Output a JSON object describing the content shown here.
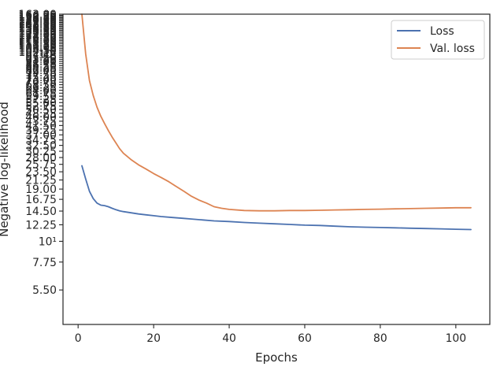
{
  "chart_data": {
    "type": "line",
    "xlabel": "Epochs",
    "ylabel": "Negative log-likelihood",
    "xlim": [
      -4,
      109
    ],
    "ylim": [
      3.6,
      163
    ],
    "yscale": "log",
    "x_ticks": [
      0,
      20,
      40,
      60,
      80,
      100
    ],
    "y_ticks": [
      {
        "value": 5.5,
        "label": "5.50"
      },
      {
        "value": 7.75,
        "label": "7.75"
      },
      {
        "value": 10,
        "label": "10¹"
      },
      {
        "value": 12.25,
        "label": "12.25"
      },
      {
        "value": 14.5,
        "label": "14.50"
      },
      {
        "value": 16.75,
        "label": "16.75"
      },
      {
        "value": 19,
        "label": "19.00"
      },
      {
        "value": 21.25,
        "label": "21.25"
      },
      {
        "value": 23.5,
        "label": "23.50"
      },
      {
        "value": 25.75,
        "label": "25.75"
      },
      {
        "value": 28,
        "label": "28.00"
      },
      {
        "value": 30.25,
        "label": "30.25"
      },
      {
        "value": 32.5,
        "label": "32.50"
      },
      {
        "value": 34.75,
        "label": "34.75"
      },
      {
        "value": 37,
        "label": "37.00"
      },
      {
        "value": 39.25,
        "label": "39.25"
      },
      {
        "value": 41.5,
        "label": "41.50"
      },
      {
        "value": 43.75,
        "label": "43.75"
      },
      {
        "value": 46,
        "label": "46.00"
      },
      {
        "value": 48.25,
        "label": "48.25"
      },
      {
        "value": 50.5,
        "label": "50.50"
      },
      {
        "value": 52.75,
        "label": "52.75"
      },
      {
        "value": 55,
        "label": "55.00"
      },
      {
        "value": 57.25,
        "label": "57.25"
      },
      {
        "value": 59.5,
        "label": "59.50"
      },
      {
        "value": 61.75,
        "label": "61.75"
      },
      {
        "value": 64,
        "label": "64.00"
      },
      {
        "value": 66.25,
        "label": "66.25"
      },
      {
        "value": 68.5,
        "label": "68.50"
      },
      {
        "value": 70.75,
        "label": "70.75"
      },
      {
        "value": 73,
        "label": "73.00"
      },
      {
        "value": 75.25,
        "label": "75.25"
      },
      {
        "value": 77.5,
        "label": "77.50"
      },
      {
        "value": 79.75,
        "label": "79.75"
      },
      {
        "value": 82,
        "label": "82.00"
      },
      {
        "value": 84.25,
        "label": "84.25"
      },
      {
        "value": 86.5,
        "label": "86.50"
      },
      {
        "value": 88.75,
        "label": "88.75"
      },
      {
        "value": 91,
        "label": "91.00"
      },
      {
        "value": 93.25,
        "label": "93.25"
      },
      {
        "value": 95.5,
        "label": "95.50"
      },
      {
        "value": 97.75,
        "label": "97.75"
      },
      {
        "value": 100,
        "label": "10²"
      },
      {
        "value": 102.25,
        "label": "102.25"
      },
      {
        "value": 104.5,
        "label": "104.50"
      },
      {
        "value": 106.75,
        "label": "106.75"
      },
      {
        "value": 109,
        "label": "109.00"
      },
      {
        "value": 111.25,
        "label": "111.25"
      },
      {
        "value": 113.5,
        "label": "113.50"
      },
      {
        "value": 115.75,
        "label": "115.75"
      },
      {
        "value": 118,
        "label": "118.00"
      },
      {
        "value": 120.25,
        "label": "120.25"
      },
      {
        "value": 122.5,
        "label": "122.50"
      },
      {
        "value": 124.75,
        "label": "124.75"
      },
      {
        "value": 127,
        "label": "127.00"
      },
      {
        "value": 129.25,
        "label": "129.25"
      },
      {
        "value": 131.5,
        "label": "131.50"
      },
      {
        "value": 133.75,
        "label": "133.75"
      },
      {
        "value": 136,
        "label": "136.00"
      },
      {
        "value": 138.25,
        "label": "138.25"
      },
      {
        "value": 140.5,
        "label": "140.50"
      },
      {
        "value": 142.75,
        "label": "142.75"
      },
      {
        "value": 145,
        "label": "145.00"
      },
      {
        "value": 147.25,
        "label": "147.25"
      },
      {
        "value": 149.5,
        "label": "149.50"
      },
      {
        "value": 151.75,
        "label": "151.75"
      },
      {
        "value": 154,
        "label": "154.00"
      },
      {
        "value": 156.25,
        "label": "156.25"
      },
      {
        "value": 158.5,
        "label": "158.50"
      },
      {
        "value": 160.75,
        "label": "160.75"
      },
      {
        "value": 163,
        "label": "163.00"
      }
    ],
    "grid": false,
    "legend_position": "top-right",
    "series": [
      {
        "name": "Loss",
        "color": "#4c72b0",
        "x": [
          1,
          2,
          3,
          4,
          5,
          6,
          7,
          8,
          9,
          10,
          11,
          12,
          14,
          16,
          18,
          20,
          22,
          25,
          28,
          30,
          33,
          36,
          40,
          44,
          48,
          52,
          56,
          60,
          64,
          68,
          72,
          76,
          80,
          84,
          88,
          92,
          96,
          100,
          104
        ],
        "y": [
          25.3,
          21.5,
          18.5,
          16.9,
          16.0,
          15.6,
          15.5,
          15.3,
          15.0,
          14.75,
          14.55,
          14.4,
          14.2,
          14.0,
          13.85,
          13.7,
          13.55,
          13.4,
          13.25,
          13.15,
          13.0,
          12.85,
          12.75,
          12.6,
          12.5,
          12.4,
          12.3,
          12.2,
          12.15,
          12.05,
          11.95,
          11.9,
          11.85,
          11.8,
          11.75,
          11.7,
          11.65,
          11.6,
          11.55
        ]
      },
      {
        "name": "Val. loss",
        "color": "#dd8452",
        "x": [
          1,
          2,
          3,
          4,
          5,
          6,
          7,
          8,
          9,
          10,
          11,
          12,
          14,
          16,
          18,
          20,
          22,
          24,
          26,
          28,
          30,
          32,
          34,
          36,
          38,
          40,
          44,
          48,
          52,
          56,
          60,
          64,
          68,
          72,
          76,
          80,
          84,
          88,
          92,
          96,
          100,
          104
        ],
        "y": [
          163,
          100,
          72,
          60,
          52,
          46.5,
          42.5,
          39,
          36,
          33.5,
          31.2,
          29.5,
          27.3,
          25.6,
          24.3,
          23.0,
          21.9,
          20.8,
          19.6,
          18.5,
          17.4,
          16.6,
          16.0,
          15.3,
          15.0,
          14.8,
          14.6,
          14.55,
          14.55,
          14.6,
          14.6,
          14.65,
          14.7,
          14.75,
          14.8,
          14.85,
          14.9,
          14.95,
          15.0,
          15.05,
          15.1,
          15.1
        ]
      }
    ]
  }
}
